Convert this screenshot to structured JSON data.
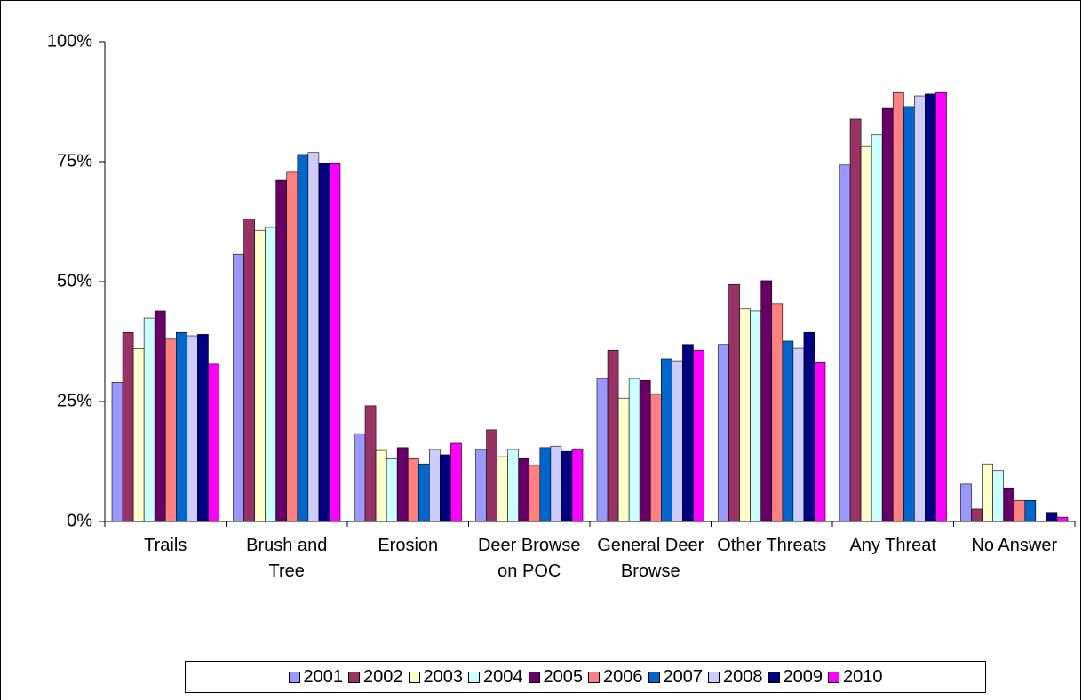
{
  "chart_data": {
    "type": "bar",
    "categories": [
      "Trails",
      "Brush and Tree",
      "Erosion",
      "Deer Browse on POC",
      "General Deer Browse",
      "Other Threats",
      "Any Threat",
      "No Answer"
    ],
    "series": [
      {
        "name": "2001",
        "color": "#9999ff",
        "values": [
          29,
          55.7,
          18.3,
          15,
          29.8,
          36.9,
          74.3,
          7.8
        ]
      },
      {
        "name": "2002",
        "color": "#993366",
        "values": [
          39.4,
          63.1,
          24.1,
          19.1,
          35.7,
          49.4,
          83.9,
          2.6
        ]
      },
      {
        "name": "2003",
        "color": "#ffffcc",
        "values": [
          36,
          60.7,
          14.8,
          13.5,
          25.7,
          44.3,
          78.3,
          12
        ]
      },
      {
        "name": "2004",
        "color": "#ccffff",
        "values": [
          42.4,
          61.3,
          13.1,
          15,
          29.8,
          43.9,
          80.6,
          10.6
        ]
      },
      {
        "name": "2005",
        "color": "#660066",
        "values": [
          43.9,
          71.1,
          15.4,
          13.1,
          29.4,
          50.2,
          86.1,
          7
        ]
      },
      {
        "name": "2006",
        "color": "#ff8080",
        "values": [
          38,
          72.8,
          13.1,
          11.7,
          26.5,
          45.4,
          89.4,
          4.4
        ]
      },
      {
        "name": "2007",
        "color": "#0066cc",
        "values": [
          39.4,
          76.5,
          12,
          15.4,
          33.9,
          37.6,
          86.5,
          4.4
        ]
      },
      {
        "name": "2008",
        "color": "#ccccff",
        "values": [
          38.7,
          76.9,
          15,
          15.7,
          33.5,
          36.1,
          88.7,
          0
        ]
      },
      {
        "name": "2009",
        "color": "#000080",
        "values": [
          39,
          74.6,
          13.9,
          14.6,
          36.9,
          39.4,
          89.1,
          1.9
        ]
      },
      {
        "name": "2010",
        "color": "#ff00ff",
        "values": [
          32.8,
          74.6,
          16.3,
          15,
          35.7,
          33.1,
          89.4,
          0.9
        ]
      }
    ],
    "ylim": [
      0,
      100
    ],
    "yticks": [
      {
        "value": 0,
        "label": "0%"
      },
      {
        "value": 25,
        "label": "25%"
      },
      {
        "value": 50,
        "label": "50%"
      },
      {
        "value": 75,
        "label": "75%"
      },
      {
        "value": 100,
        "label": "100%"
      }
    ]
  }
}
